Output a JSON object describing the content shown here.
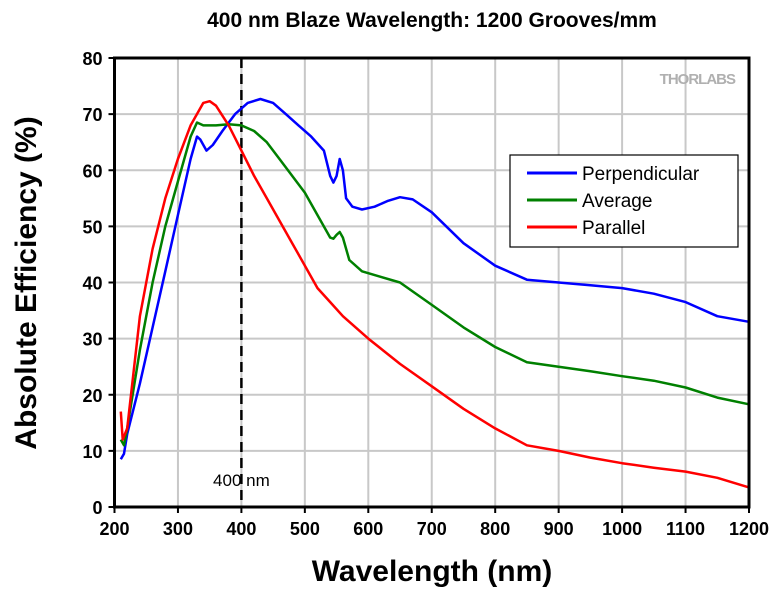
{
  "chart_data": {
    "type": "line",
    "title": "400 nm Blaze Wavelength: 1200 Grooves/mm",
    "xlabel": "Wavelength (nm)",
    "ylabel": "Absolute Efficiency (%)",
    "xlim": [
      200,
      1200
    ],
    "ylim": [
      0,
      80
    ],
    "xticks": [
      200,
      300,
      400,
      500,
      600,
      700,
      800,
      900,
      1000,
      1100,
      1200
    ],
    "yticks": [
      0,
      10,
      20,
      30,
      40,
      50,
      60,
      70,
      80
    ],
    "grid": true,
    "legend_position": "upper-right",
    "annotation": {
      "x": 400,
      "label": "400 nm",
      "style": "dashed vertical line"
    },
    "watermark": "THORLABS",
    "series": [
      {
        "name": "Perpendicular",
        "color": "#0000ff",
        "x": [
          210,
          215,
          220,
          240,
          260,
          280,
          300,
          320,
          330,
          335,
          345,
          355,
          370,
          390,
          410,
          430,
          450,
          470,
          490,
          510,
          530,
          540,
          545,
          550,
          555,
          560,
          565,
          575,
          590,
          610,
          630,
          650,
          670,
          700,
          750,
          800,
          850,
          900,
          950,
          1000,
          1050,
          1100,
          1150,
          1200
        ],
        "y": [
          8.5,
          9.5,
          13,
          22,
          32,
          42,
          52,
          62,
          66,
          65.5,
          63.5,
          64.5,
          67,
          70,
          72,
          72.7,
          72,
          70,
          68,
          66,
          63.5,
          59,
          57.8,
          59,
          62,
          60,
          55,
          53.5,
          53,
          53.5,
          54.5,
          55.2,
          54.8,
          52.5,
          47,
          43,
          40.5,
          40,
          39.5,
          39,
          38,
          36.5,
          34,
          33
        ]
      },
      {
        "name": "Average",
        "color": "#008000",
        "x": [
          210,
          215,
          220,
          240,
          260,
          280,
          300,
          320,
          330,
          340,
          360,
          380,
          400,
          420,
          440,
          460,
          480,
          500,
          520,
          540,
          545,
          550,
          555,
          560,
          570,
          590,
          620,
          650,
          700,
          750,
          800,
          850,
          900,
          950,
          1000,
          1050,
          1100,
          1150,
          1200
        ],
        "y": [
          12,
          11,
          14,
          28,
          40,
          50,
          58,
          66,
          68.5,
          68,
          68,
          68.2,
          68,
          67,
          65,
          62,
          59,
          56,
          52,
          48,
          47.8,
          48.5,
          49,
          48,
          44,
          42,
          41,
          40,
          36,
          32,
          28.5,
          25.8,
          25,
          24.2,
          23.3,
          22.5,
          21.3,
          19.5,
          18.3
        ]
      },
      {
        "name": "Parallel",
        "color": "#ff0000",
        "x": [
          210,
          213,
          220,
          240,
          260,
          280,
          300,
          320,
          340,
          350,
          360,
          380,
          400,
          420,
          440,
          460,
          480,
          500,
          520,
          540,
          560,
          600,
          650,
          700,
          750,
          800,
          850,
          900,
          950,
          1000,
          1050,
          1100,
          1150,
          1200
        ],
        "y": [
          17,
          12,
          14,
          34,
          46,
          55,
          62,
          68,
          72,
          72.3,
          71.5,
          68,
          63.5,
          59,
          55,
          51,
          47,
          43,
          39,
          36.5,
          34,
          30,
          25.5,
          21.5,
          17.5,
          14,
          11,
          10,
          8.8,
          7.8,
          7,
          6.3,
          5.2,
          3.5
        ]
      }
    ]
  }
}
